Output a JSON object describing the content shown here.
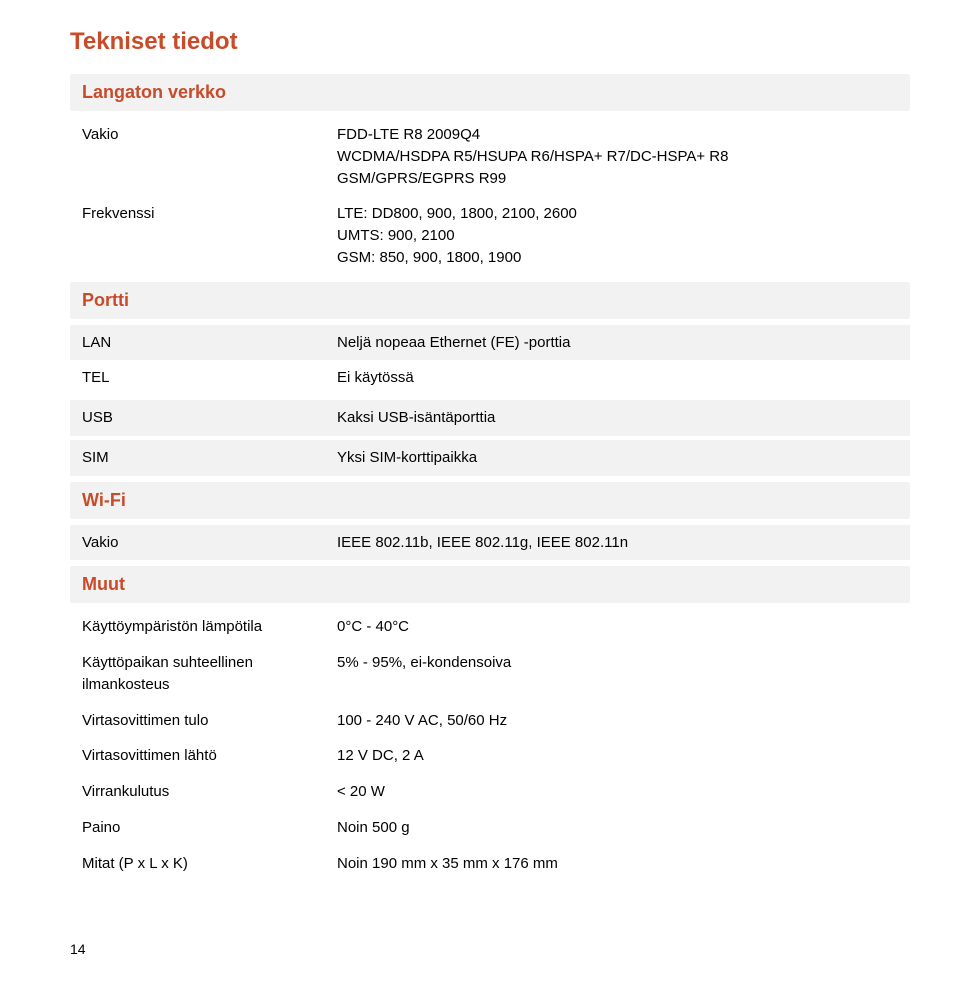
{
  "colors": {
    "heading": "#c84b2a",
    "section_bg": "#f2f2f2",
    "text": "#000000",
    "page_bg": "#ffffff"
  },
  "fonts": {
    "family": "Arial, Helvetica, sans-serif",
    "title_size": 24,
    "section_size": 18,
    "body_size": 15
  },
  "title": "Tekniset tiedot",
  "wireless": {
    "heading": "Langaton verkko",
    "vakio_label": "Vakio",
    "vakio_lines": [
      "FDD-LTE R8 2009Q4",
      "WCDMA/HSDPA R5/HSUPA R6/HSPA+ R7/DC-HSPA+ R8",
      "GSM/GPRS/EGPRS R99"
    ],
    "freq_label": "Frekvenssi",
    "freq_lines": [
      "LTE: DD800, 900, 1800, 2100, 2600",
      "UMTS: 900, 2100",
      "GSM: 850, 900, 1800, 1900"
    ]
  },
  "portti": {
    "heading": "Portti",
    "lan_label": "LAN",
    "lan_value": "Neljä nopeaa Ethernet (FE) -porttia",
    "tel_label": "TEL",
    "tel_value": "Ei käytössä",
    "usb_label": "USB",
    "usb_value": "Kaksi USB-isäntäporttia",
    "sim_label": "SIM",
    "sim_value": "Yksi SIM-korttipaikka"
  },
  "wifi": {
    "heading": "Wi-Fi",
    "vakio_label": "Vakio",
    "vakio_value": "IEEE 802.11b, IEEE 802.11g, IEEE 802.11n"
  },
  "muut": {
    "heading": "Muut",
    "temp_label": "Käyttöympäristön lämpötila",
    "temp_value": "0°C - 40°C",
    "humidity_label": "Käyttöpaikan suhteellinen ilmankosteus",
    "humidity_value": "5% - 95%, ei-kondensoiva",
    "psu_in_label": "Virtasovittimen tulo",
    "psu_in_value": "100 - 240 V AC, 50/60 Hz",
    "psu_out_label": "Virtasovittimen lähtö",
    "psu_out_value": "12 V DC, 2 A",
    "power_label": "Virrankulutus",
    "power_value": "< 20 W",
    "weight_label": "Paino",
    "weight_value": "Noin 500 g",
    "dims_label": "Mitat (P x L x K)",
    "dims_value": "Noin 190 mm x 35 mm x 176 mm"
  },
  "page_number": "14"
}
